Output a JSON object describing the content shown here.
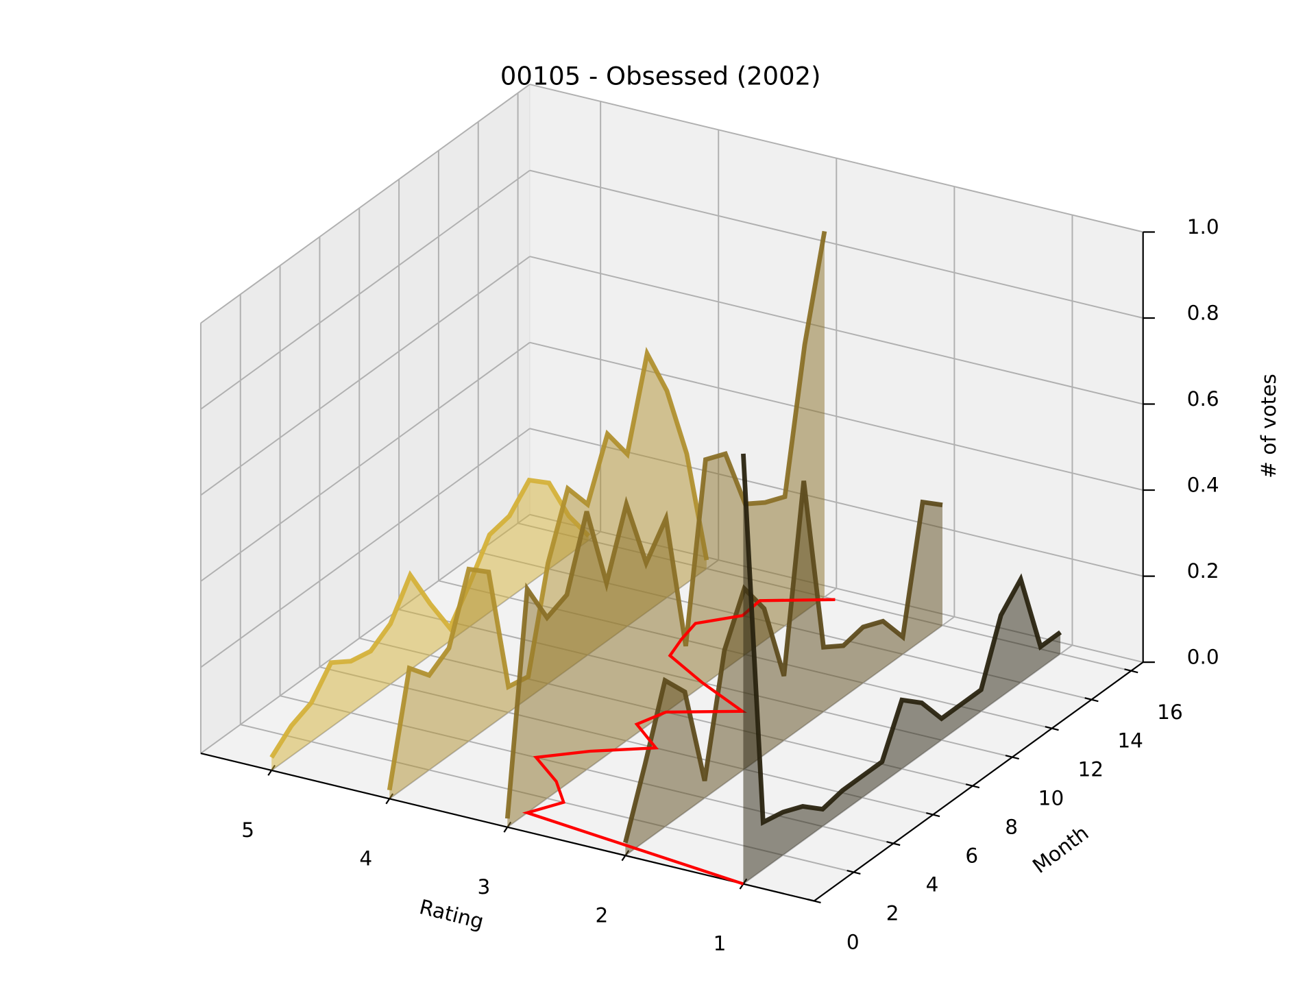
{
  "chart_data": {
    "type": "line3d",
    "title": "00105 - Obsessed (2002)",
    "xlabel": "Rating",
    "ylabel": "Month",
    "zlabel": "# of votes",
    "xlim": [
      5.6,
      0.4
    ],
    "ylim": [
      0,
      16.6
    ],
    "zlim": [
      0,
      1
    ],
    "xticks": [
      5,
      4,
      3,
      2,
      1
    ],
    "yticks": [
      0,
      2,
      4,
      6,
      8,
      10,
      12,
      14,
      16
    ],
    "zticks": [
      {
        "value": 0,
        "label": "0.0"
      },
      0.2,
      0.4,
      0.6,
      0.8,
      {
        "value": 1,
        "label": "1.0"
      }
    ],
    "grid": true,
    "months": [
      0,
      1,
      2,
      3,
      4,
      5,
      6,
      7,
      8,
      9,
      10,
      11,
      12,
      13,
      14,
      15,
      16
    ],
    "series": [
      {
        "rating": 5,
        "color": "#d4b13a",
        "values": [
          0.03,
          0.07,
          0.09,
          0.15,
          0.12,
          0.11,
          0.14,
          0.22,
          0.12,
          0.03,
          0.1,
          0.18,
          0.19,
          0.24,
          0.2,
          0.09,
          0.01
        ]
      },
      {
        "rating": 4,
        "color": "#b0902f",
        "values": [
          0.02,
          0.27,
          0.22,
          0.25,
          0.4,
          0.36,
          0.06,
          0.05,
          0.28,
          0.42,
          0.35,
          0.48,
          0.4,
          0.6,
          0.48,
          0.3,
          0.02
        ]
      },
      {
        "rating": 3,
        "color": "#8a7027",
        "values": [
          0.02,
          0.52,
          0.42,
          0.44,
          0.6,
          0.4,
          0.55,
          0.38,
          0.45,
          0.12,
          0.52,
          0.5,
          0.35,
          0.32,
          0.3,
          0.62,
          0.85
        ]
      },
      {
        "rating": 2,
        "color": "#5e4c1e",
        "values": [
          0.03,
          0.18,
          0.34,
          0.28,
          0.04,
          0.31,
          0.42,
          0.34,
          0.15,
          0.57,
          0.15,
          0.12,
          0.13,
          0.11,
          0.04,
          0.32,
          0.28
        ]
      },
      {
        "rating": 1,
        "color": "#2a2410",
        "values": [
          1.0,
          0.11,
          0.1,
          0.08,
          0.04,
          0.05,
          0.05,
          0.05,
          0.16,
          0.12,
          0.05,
          0.05,
          0.05,
          0.19,
          0.24,
          0.05,
          0.05
        ]
      }
    ],
    "mean_line": {
      "color": "#ff0000",
      "values": [
        1.0,
        3.0,
        2.86,
        3.09,
        3.43,
        3.14,
        2.75,
        3.08,
        3.0,
        2.52,
        3.03,
        3.47,
        3.54,
        3.59,
        3.36,
        3.38,
        2.91
      ]
    }
  }
}
